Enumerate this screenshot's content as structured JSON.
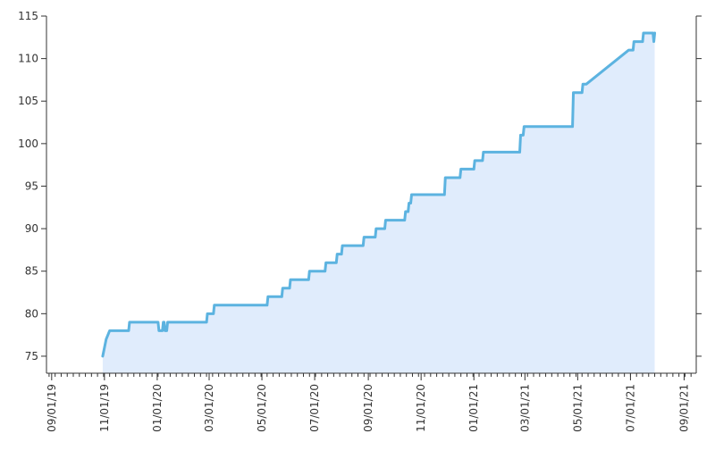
{
  "chart_data": {
    "type": "area",
    "title": "",
    "xlabel": "",
    "ylabel": "",
    "x_axis": {
      "type": "date",
      "range": [
        "2019-08-26",
        "2021-09-15"
      ],
      "ticks": [
        {
          "date": "2019-09-01",
          "label": "09/01/19"
        },
        {
          "date": "2019-11-01",
          "label": "11/01/19"
        },
        {
          "date": "2020-01-01",
          "label": "01/01/20"
        },
        {
          "date": "2020-03-01",
          "label": "03/01/20"
        },
        {
          "date": "2020-05-01",
          "label": "05/01/20"
        },
        {
          "date": "2020-07-01",
          "label": "07/01/20"
        },
        {
          "date": "2020-09-01",
          "label": "09/01/20"
        },
        {
          "date": "2020-11-01",
          "label": "11/01/20"
        },
        {
          "date": "2021-01-01",
          "label": "01/01/21"
        },
        {
          "date": "2021-03-01",
          "label": "03/01/21"
        },
        {
          "date": "2021-05-01",
          "label": "05/01/21"
        },
        {
          "date": "2021-07-01",
          "label": "07/01/21"
        },
        {
          "date": "2021-09-01",
          "label": "09/01/21"
        }
      ]
    },
    "y_axis": {
      "range": [
        73,
        115
      ],
      "ticks": [
        75,
        80,
        85,
        90,
        95,
        100,
        105,
        110,
        115
      ],
      "position": "both sides"
    },
    "grid": false,
    "legend": "none",
    "colors": {
      "line": "#5cb3e0",
      "fill": "#e0ecfc",
      "axis": "#333333"
    },
    "series": [
      {
        "points": [
          [
            "2019-10-30",
            75
          ],
          [
            "2019-11-01",
            76
          ],
          [
            "2019-11-03",
            77
          ],
          [
            "2019-11-07",
            78
          ],
          [
            "2019-11-29",
            78
          ],
          [
            "2019-11-30",
            79
          ],
          [
            "2020-01-02",
            79
          ],
          [
            "2020-01-03",
            78
          ],
          [
            "2020-01-07",
            78
          ],
          [
            "2020-01-08",
            79
          ],
          [
            "2020-01-09",
            79
          ],
          [
            "2020-01-10",
            78
          ],
          [
            "2020-01-12",
            78
          ],
          [
            "2020-01-13",
            79
          ],
          [
            "2020-02-27",
            79
          ],
          [
            "2020-02-28",
            80
          ],
          [
            "2020-03-06",
            80
          ],
          [
            "2020-03-07",
            81
          ],
          [
            "2020-04-29",
            81
          ],
          [
            "2020-05-07",
            81
          ],
          [
            "2020-05-08",
            82
          ],
          [
            "2020-05-24",
            82
          ],
          [
            "2020-05-25",
            83
          ],
          [
            "2020-06-02",
            83
          ],
          [
            "2020-06-03",
            84
          ],
          [
            "2020-06-24",
            84
          ],
          [
            "2020-06-25",
            85
          ],
          [
            "2020-07-13",
            85
          ],
          [
            "2020-07-14",
            86
          ],
          [
            "2020-07-26",
            86
          ],
          [
            "2020-07-27",
            87
          ],
          [
            "2020-08-01",
            87
          ],
          [
            "2020-08-02",
            88
          ],
          [
            "2020-08-26",
            88
          ],
          [
            "2020-08-27",
            89
          ],
          [
            "2020-09-09",
            89
          ],
          [
            "2020-09-10",
            90
          ],
          [
            "2020-09-20",
            90
          ],
          [
            "2020-09-21",
            91
          ],
          [
            "2020-10-13",
            91
          ],
          [
            "2020-10-14",
            92
          ],
          [
            "2020-10-17",
            92
          ],
          [
            "2020-10-18",
            93
          ],
          [
            "2020-10-20",
            93
          ],
          [
            "2020-10-21",
            94
          ],
          [
            "2020-11-28",
            94
          ],
          [
            "2020-11-29",
            96
          ],
          [
            "2020-12-16",
            96
          ],
          [
            "2020-12-17",
            97
          ],
          [
            "2021-01-01",
            97
          ],
          [
            "2021-01-02",
            98
          ],
          [
            "2021-01-11",
            98
          ],
          [
            "2021-01-12",
            99
          ],
          [
            "2021-02-23",
            99
          ],
          [
            "2021-02-24",
            101
          ],
          [
            "2021-02-27",
            101
          ],
          [
            "2021-02-28",
            102
          ],
          [
            "2021-04-25",
            102
          ],
          [
            "2021-04-26",
            106
          ],
          [
            "2021-05-06",
            106
          ],
          [
            "2021-05-07",
            107
          ],
          [
            "2021-05-11",
            107
          ],
          [
            "2021-06-29",
            111
          ],
          [
            "2021-07-04",
            111
          ],
          [
            "2021-07-05",
            112
          ],
          [
            "2021-07-15",
            112
          ],
          [
            "2021-07-16",
            113
          ],
          [
            "2021-07-27",
            113
          ],
          [
            "2021-07-28",
            112
          ],
          [
            "2021-07-29",
            113
          ]
        ]
      }
    ]
  }
}
